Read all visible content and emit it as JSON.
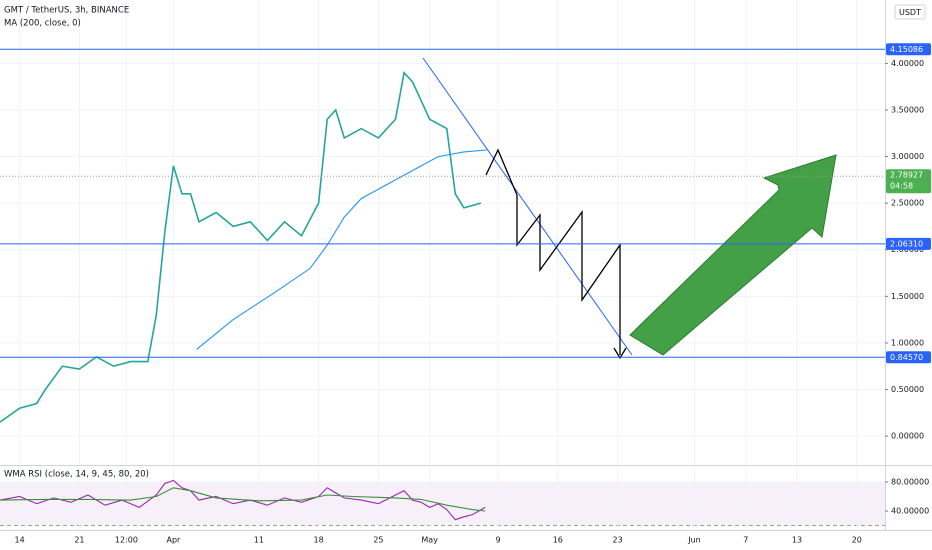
{
  "chart_data": [
    {
      "type": "line",
      "title": "GMT / TetherUS, 3h, BINANCE",
      "currency": "USDT",
      "xlim": [
        -2.3,
        101.3
      ],
      "ylim": [
        -0.31,
        4.68
      ],
      "yticks": [
        {
          "value": 0,
          "label": "0.00000"
        },
        {
          "value": 0.5,
          "label": "0.50000"
        },
        {
          "value": 1,
          "label": "1.00000"
        },
        {
          "value": 1.5,
          "label": "1.50000"
        },
        {
          "value": 2,
          "label": "2.00000"
        },
        {
          "value": 2.5,
          "label": "2.50000"
        },
        {
          "value": 3,
          "label": "3.00000"
        },
        {
          "value": 3.5,
          "label": "3.50000"
        },
        {
          "value": 4,
          "label": "4.00000"
        }
      ],
      "series": [
        {
          "color": "#26a69a",
          "x": [
            -2.3,
            0,
            2,
            3,
            5,
            7,
            9,
            11,
            13,
            15,
            16,
            17,
            18,
            19,
            20,
            21,
            23,
            25,
            27,
            29,
            31,
            33,
            35,
            36,
            37,
            38,
            40,
            42,
            44,
            45,
            46,
            47,
            48,
            49,
            50,
            51,
            52,
            54
          ],
          "values": [
            0.15,
            0.3,
            0.35,
            0.5,
            0.75,
            0.72,
            0.85,
            0.75,
            0.8,
            0.8,
            1.3,
            2.2,
            2.9,
            2.6,
            2.6,
            2.3,
            2.4,
            2.25,
            2.3,
            2.1,
            2.3,
            2.15,
            2.5,
            3.4,
            3.5,
            3.2,
            3.3,
            3.2,
            3.4,
            3.9,
            3.8,
            3.6,
            3.4,
            3.35,
            3.3,
            2.6,
            2.45,
            2.5
          ]
        },
        {
          "name": "MA (200, close, 0)",
          "color": "#2196f3",
          "x": [
            20.7,
            25,
            30,
            34,
            36,
            38,
            40,
            43,
            46,
            49,
            52,
            54.7
          ],
          "values": [
            0.93,
            1.25,
            1.55,
            1.8,
            2.05,
            2.35,
            2.55,
            2.7,
            2.85,
            3.0,
            3.05,
            3.07
          ]
        }
      ],
      "levels": [
        {
          "value": 4.15086,
          "label": "4.15086"
        },
        {
          "value": 2.0631,
          "label": "2.06310"
        },
        {
          "value": 0.8457,
          "label": "0.84570"
        }
      ],
      "level_color": "#2962ff",
      "last_price": {
        "value": 2.78927,
        "label": "2.78927",
        "countdown": "04:58",
        "color": "#4caf50"
      }
    },
    {
      "type": "line",
      "title": "WMA RSI (close, 14, 9, 45, 80, 20)",
      "xlim": [
        -2.3,
        101.3
      ],
      "ylim": [
        13.8,
        99.3
      ],
      "yticks": [
        {
          "value": 80,
          "label": "80.00000"
        },
        {
          "value": 40,
          "label": "40.00000"
        }
      ],
      "band": [
        20,
        80
      ],
      "xticks": [
        {
          "value": 0,
          "label": "14"
        },
        {
          "value": 7,
          "label": "21"
        },
        {
          "value": 12.5,
          "label": "12:00"
        },
        {
          "value": 18,
          "label": "Apr"
        },
        {
          "value": 28,
          "label": "11"
        },
        {
          "value": 35,
          "label": "18"
        },
        {
          "value": 42,
          "label": "25"
        },
        {
          "value": 48,
          "label": "May"
        },
        {
          "value": 56,
          "label": "9"
        },
        {
          "value": 63,
          "label": "16"
        },
        {
          "value": 70,
          "label": "23"
        },
        {
          "value": 79,
          "label": "Jun"
        },
        {
          "value": 85,
          "label": "7"
        },
        {
          "value": 91,
          "label": "13"
        },
        {
          "value": 98,
          "label": "20"
        }
      ],
      "series": [
        {
          "color": "#9c27b0",
          "x": [
            -2.3,
            0,
            2,
            4,
            6,
            8,
            10,
            12,
            14,
            16,
            17,
            18,
            19,
            20,
            21,
            23,
            25,
            27,
            29,
            31,
            33,
            35,
            36,
            37,
            38,
            40,
            42,
            44,
            45,
            46,
            47,
            48,
            49,
            50,
            51,
            52,
            53,
            54.5
          ],
          "values": [
            55,
            60,
            50,
            58,
            52,
            62,
            48,
            55,
            45,
            62,
            78,
            82,
            72,
            68,
            55,
            60,
            50,
            55,
            48,
            58,
            52,
            60,
            72,
            65,
            58,
            55,
            50,
            62,
            68,
            55,
            52,
            45,
            50,
            42,
            28,
            32,
            35,
            45
          ]
        },
        {
          "color": "#388e3c",
          "x": [
            -2.3,
            3,
            8,
            13,
            16,
            18,
            20,
            23,
            28,
            33,
            36,
            39,
            44,
            47,
            50,
            53,
            54.5
          ],
          "values": [
            55,
            56,
            56,
            55,
            60,
            72,
            68,
            58,
            54,
            55,
            62,
            60,
            58,
            56,
            48,
            42,
            40
          ]
        }
      ]
    }
  ]
}
